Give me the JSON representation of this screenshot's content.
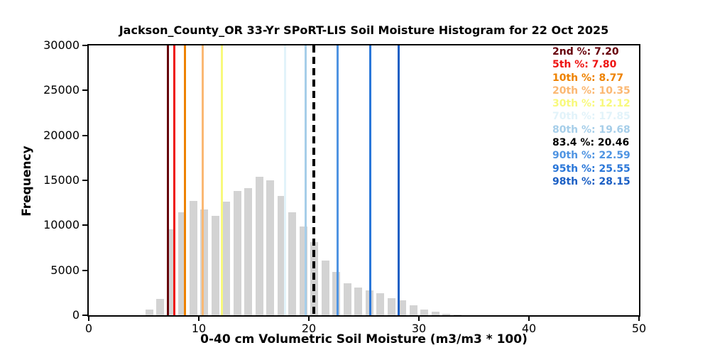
{
  "chart_data": {
    "type": "bar",
    "subtype": "histogram",
    "title": "Jackson_County_OR 33-Yr SPoRT-LIS Soil Moisture Histogram for 22 Oct 2025",
    "xlabel": "0-40 cm Volumetric Soil Moisture (m3/m3 * 100)",
    "ylabel": "Frequency",
    "xlim": [
      0,
      50
    ],
    "ylim": [
      0,
      30000
    ],
    "x_ticks": [
      0,
      10,
      20,
      30,
      40,
      50
    ],
    "y_ticks": [
      0,
      5000,
      10000,
      15000,
      20000,
      25000,
      30000
    ],
    "grid": false,
    "bar_color": "#d3d3d3",
    "bin_width": 1,
    "bar_relative_width": 0.7,
    "bin_centers": [
      5.5,
      6.5,
      7.5,
      8.5,
      9.5,
      10.5,
      11.5,
      12.5,
      13.5,
      14.5,
      15.5,
      16.5,
      17.5,
      18.5,
      19.5,
      20.5,
      21.5,
      22.5,
      23.5,
      24.5,
      25.5,
      26.5,
      27.5,
      28.5,
      29.5,
      30.5,
      31.5,
      32.5,
      33.5
    ],
    "frequencies": [
      650,
      1800,
      9550,
      11420,
      12710,
      11760,
      11080,
      12660,
      13850,
      14150,
      15360,
      14990,
      13260,
      11470,
      9870,
      8150,
      6100,
      4790,
      3550,
      3080,
      2740,
      2420,
      1900,
      1630,
      1100,
      600,
      400,
      160,
      60
    ],
    "legend_position": "upper-right",
    "percentile_lines": [
      {
        "label": "2nd %",
        "value": 7.2,
        "display": "2nd %: 7.20",
        "color": "#67000a",
        "dashed": false
      },
      {
        "label": "5th %",
        "value": 7.8,
        "display": "5th %: 7.80",
        "color": "#ee1311",
        "dashed": false
      },
      {
        "label": "10th %",
        "value": 8.77,
        "display": "10th %: 8.77",
        "color": "#ee8200",
        "dashed": false
      },
      {
        "label": "20th %",
        "value": 10.35,
        "display": "20th %: 10.35",
        "color": "#fbb873",
        "dashed": false
      },
      {
        "label": "30th %",
        "value": 12.12,
        "display": "30th %: 12.12",
        "color": "#f8f97c",
        "dashed": false
      },
      {
        "label": "70th %",
        "value": 17.85,
        "display": "70th %: 17.85",
        "color": "#e2f3fa",
        "dashed": false
      },
      {
        "label": "80th %",
        "value": 19.68,
        "display": "80th %: 19.68",
        "color": "#a6cee9",
        "dashed": false
      },
      {
        "label": "83.4 %",
        "value": 20.46,
        "display": "83.4 %: 20.46",
        "color": "#000000",
        "dashed": true
      },
      {
        "label": "90th %",
        "value": 22.59,
        "display": "90th %: 22.59",
        "color": "#4f94e2",
        "dashed": false
      },
      {
        "label": "95th %",
        "value": 25.55,
        "display": "95th %: 25.55",
        "color": "#2a77d9",
        "dashed": false
      },
      {
        "label": "98th %",
        "value": 28.15,
        "display": "98th %: 28.15",
        "color": "#1b5fc4",
        "dashed": false
      }
    ]
  }
}
